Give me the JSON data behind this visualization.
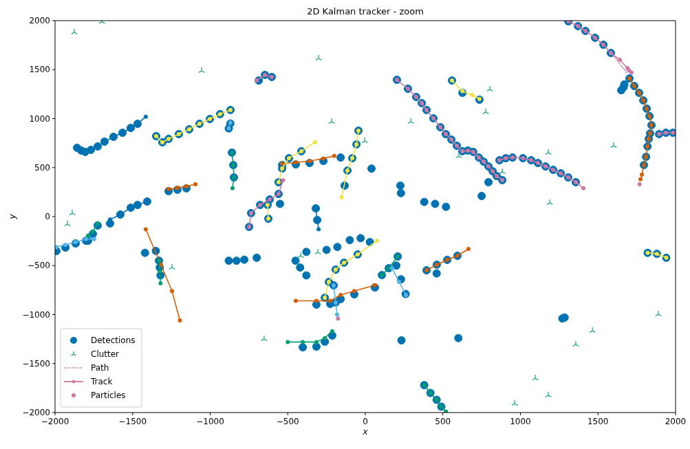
{
  "chart_data": {
    "type": "scatter",
    "title": "2D Kalman tracker - zoom",
    "xlabel": "x",
    "ylabel": "y",
    "xlim": [
      -2000,
      2000
    ],
    "ylim": [
      -2000,
      2000
    ],
    "xticks": [
      -2000,
      -1500,
      -1000,
      -500,
      0,
      500,
      1000,
      1500,
      2000
    ],
    "yticks": [
      -2000,
      -1500,
      -1000,
      -500,
      0,
      500,
      1000,
      1500,
      2000
    ],
    "grid": false,
    "legend": "bottom left",
    "series": [
      {
        "name": "Detections",
        "marker": "circle",
        "color": "#0072b2",
        "x": [
          1309,
          1371,
          1419,
          1481,
          1535,
          1583,
          204,
          275,
          328,
          364,
          395,
          439,
          484,
          519,
          555,
          590,
          626,
          661,
          696,
          732,
          763,
          794,
          821,
          847,
          883,
          865,
          905,
          949,
          1016,
          1069,
          1113,
          1162,
          1211,
          1260,
          1308,
          1357,
          1703,
          1734,
          1765,
          1792,
          1814,
          1832,
          1845,
          1836,
          1827,
          1819,
          1810,
          1796,
          1650,
          1665,
          1670,
          1894,
          1938,
          1983,
          -1858,
          -1831,
          -1805,
          -1769,
          -1725,
          -1681,
          -1623,
          -1565,
          -1512,
          -1468,
          -1348,
          -1308,
          -1268,
          -1202,
          -1135,
          -1069,
          -1002,
          -936,
          -869,
          -880,
          -870,
          -860,
          -851,
          -847,
          -1268,
          -1211,
          -1153,
          -1645,
          -1579,
          -1512,
          -1468,
          -1406,
          -1330,
          -1325,
          -1320,
          -1991,
          -1933,
          -1867,
          -1800,
          -1787,
          -1756,
          -1725,
          -536,
          -448,
          -359,
          -270,
          -159,
          -559,
          -536,
          -492,
          -412,
          -133,
          -115,
          -84,
          -57,
          -44,
          -749,
          -736,
          -678,
          -616,
          -559,
          -630,
          -625,
          -319,
          -310,
          -687,
          -647,
          -603,
          -250,
          -180,
          -100,
          -30,
          30,
          -450,
          -420,
          -380,
          -261,
          -235,
          -191,
          -137,
          -49,
          -315,
          -226,
          -159,
          -71,
          62,
          -403,
          -315,
          -261,
          -213,
          107,
          151,
          209,
          200,
          230,
          260,
          -204,
          -191,
          395,
          461,
          528,
          594,
          40,
          -550,
          233,
          600,
          460,
          1270,
          1285,
          -880,
          -830,
          -780,
          -700,
          -1420,
          -380,
          -1350,
          226,
          230,
          380,
          450,
          520,
          750,
          794,
          559,
          626,
          736,
          1820,
          1880,
          1940,
          380,
          420,
          460,
          490
        ],
        "values": [
          1993,
          1944,
          1895,
          1825,
          1754,
          1670,
          1396,
          1305,
          1221,
          1158,
          1088,
          1003,
          912,
          842,
          786,
          723,
          667,
          674,
          660,
          603,
          561,
          512,
          463,
          414,
          372,
          575,
          596,
          603,
          596,
          575,
          547,
          512,
          477,
          442,
          400,
          351,
          1410,
          1333,
          1263,
          1186,
          1102,
          1025,
          933,
          849,
          793,
          716,
          610,
          526,
          1290,
          1320,
          1350,
          842,
          856,
          856,
          702,
          674,
          660,
          681,
          716,
          765,
          814,
          856,
          905,
          947,
          821,
          758,
          793,
          842,
          891,
          947,
          996,
          1046,
          1088,
          900,
          950,
          653,
          526,
          400,
          260,
          274,
          288,
          -70,
          21,
          91,
          119,
          154,
          -450,
          -520,
          -600,
          -351,
          -316,
          -274,
          -246,
          -246,
          -176,
          -91,
          526,
          533,
          547,
          568,
          603,
          351,
          491,
          596,
          667,
          316,
          470,
          596,
          737,
          877,
          -105,
          35,
          119,
          175,
          231,
          119,
          -21,
          84,
          -35,
          1389,
          1446,
          1425,
          -340,
          -310,
          -240,
          -220,
          -260,
          -450,
          -520,
          -600,
          -828,
          -667,
          -541,
          -470,
          -386,
          -898,
          -891,
          -842,
          -793,
          -723,
          -1334,
          -1327,
          -1277,
          -1214,
          -597,
          -527,
          -407,
          -500,
          -640,
          -790,
          -702,
          -877,
          -548,
          -491,
          -442,
          -400,
          490,
          130,
          -1263,
          -1240,
          -580,
          -1040,
          -1030,
          -450,
          -450,
          -440,
          -420,
          -370,
          -360,
          -350,
          316,
          240,
          150,
          130,
          100,
          210,
          351,
          1389,
          1263,
          1193,
          -370,
          -380,
          -420,
          -1720,
          -1800,
          -1870,
          -1940
        ]
      },
      {
        "name": "Clutter",
        "marker": "cross",
        "color": "#009e73",
        "x": [
          -1876,
          -1698,
          -1055,
          -301,
          -217,
          -4,
          -1889,
          -1920,
          803,
          776,
          293,
          603,
          883,
          1180,
          1189,
          1601,
          -1246,
          -417,
          -306,
          -652,
          1889,
          1464,
          1357,
          1096,
          1180,
          963
        ],
        "values": [
          1881,
          1990,
          1488,
          1614,
          968,
          772,
          35,
          -77,
          1298,
          1067,
          968,
          617,
          456,
          653,
          140,
          723,
          -519,
          -400,
          -365,
          -1249,
          -997,
          -1165,
          -1305,
          -1649,
          -1825,
          -1909
        ]
      },
      {
        "name": "Path",
        "type": "line",
        "marker": "none",
        "line_style": "dotted",
        "color": "#cc79a7",
        "x": [
          1583,
          1640,
          1690
        ],
        "values": [
          1680,
          1560,
          1460
        ]
      },
      {
        "name": "Track",
        "type": "line",
        "marker": "circle",
        "color": "#cc79a7",
        "x": [
          1309,
          1371,
          1419,
          1481,
          1535,
          1583,
          1641,
          1690
        ],
        "values": [
          1993,
          1944,
          1895,
          1825,
          1754,
          1670,
          1600,
          1516
        ]
      },
      {
        "type": "line",
        "marker": "circle",
        "color": "#cc79a7",
        "x": [
          204,
          275,
          328,
          364,
          395,
          439,
          484,
          519,
          555,
          590,
          626,
          661,
          696,
          732,
          763,
          794,
          821,
          847,
          883
        ],
        "values": [
          1396,
          1305,
          1221,
          1158,
          1088,
          1003,
          912,
          842,
          786,
          723,
          667,
          674,
          660,
          603,
          561,
          512,
          463,
          414,
          372
        ]
      },
      {
        "type": "line",
        "marker": "circle",
        "color": "#cc79a7",
        "x": [
          865,
          905,
          949,
          1016,
          1069,
          1113,
          1162,
          1211,
          1260,
          1308,
          1357,
          1406
        ],
        "values": [
          575,
          596,
          603,
          596,
          575,
          547,
          512,
          477,
          442,
          400,
          351,
          290
        ]
      },
      {
        "type": "line",
        "marker": "circle",
        "color": "#d55e00",
        "x": [
          1703,
          1734,
          1765,
          1792,
          1814,
          1832,
          1845,
          1836,
          1827,
          1819,
          1810,
          1796,
          1783,
          1774
        ],
        "values": [
          1410,
          1333,
          1263,
          1186,
          1102,
          1025,
          933,
          849,
          793,
          716,
          610,
          526,
          428,
          380
        ]
      },
      {
        "type": "line",
        "marker": "circle",
        "color": "#cc79a7",
        "x": [
          1894,
          1938,
          1983
        ],
        "values": [
          842,
          856,
          856
        ]
      },
      {
        "type": "line",
        "marker": "circle",
        "color": "#0072b2",
        "x": [
          -1858,
          -1831,
          -1805,
          -1769,
          -1725,
          -1681,
          -1623,
          -1565,
          -1512,
          -1468,
          -1415
        ],
        "values": [
          702,
          674,
          660,
          681,
          716,
          765,
          814,
          856,
          905,
          947,
          1020
        ]
      },
      {
        "type": "line",
        "marker": "circle",
        "color": "#f0e442",
        "x": [
          -1348,
          -1308,
          -1268,
          -1202,
          -1135,
          -1069,
          -1002,
          -936,
          -869
        ],
        "values": [
          821,
          758,
          793,
          842,
          891,
          947,
          996,
          1046,
          1088
        ]
      },
      {
        "type": "line",
        "marker": "circle",
        "color": "#56b4e9",
        "x": [
          -880,
          -870
        ],
        "values": [
          900,
          960
        ]
      },
      {
        "type": "line",
        "marker": "circle",
        "color": "#009e73",
        "x": [
          -860,
          -851,
          -847,
          -856
        ],
        "values": [
          653,
          526,
          400,
          290
        ]
      },
      {
        "type": "line",
        "marker": "circle",
        "color": "#d55e00",
        "x": [
          -1268,
          -1211,
          -1153,
          -1095
        ],
        "values": [
          280,
          294,
          308,
          330
        ]
      },
      {
        "type": "line",
        "marker": "circle",
        "color": "#0072b2",
        "x": [
          -1645,
          -1579,
          -1512,
          -1468,
          -1406
        ],
        "values": [
          -30,
          21,
          91,
          119,
          154
        ]
      },
      {
        "type": "line",
        "marker": "circle",
        "color": "#d55e00",
        "x": [
          -1415,
          -1317,
          -1246,
          -1195
        ],
        "values": [
          -130,
          -491,
          -760,
          -1060
        ]
      },
      {
        "type": "line",
        "marker": "circle",
        "color": "#009e73",
        "x": [
          -1330,
          -1325,
          -1320
        ],
        "values": [
          -450,
          -560,
          -680
        ]
      },
      {
        "type": "line",
        "marker": "circle",
        "color": "#56b4e9",
        "x": [
          -1991,
          -1933,
          -1867,
          -1800,
          -1747
        ],
        "values": [
          -311,
          -290,
          -260,
          -230,
          -230
        ]
      },
      {
        "type": "line",
        "marker": "circle",
        "color": "#009e73",
        "x": [
          -1787,
          -1756,
          -1725
        ],
        "values": [
          -195,
          -150,
          -70
        ]
      },
      {
        "type": "line",
        "marker": "circle",
        "color": "#d55e00",
        "x": [
          -536,
          -448,
          -359,
          -270,
          -200
        ],
        "values": [
          540,
          553,
          567,
          593,
          620
        ]
      },
      {
        "type": "line",
        "marker": "circle",
        "color": "#f0e442",
        "x": [
          -559,
          -536,
          -492,
          -412,
          -324
        ],
        "values": [
          351,
          491,
          596,
          667,
          760
        ]
      },
      {
        "type": "line",
        "marker": "circle",
        "color": "#f0e442",
        "x": [
          -153,
          -115,
          -84,
          -57,
          -44
        ],
        "values": [
          196,
          470,
          596,
          737,
          877
        ]
      },
      {
        "type": "line",
        "marker": "circle",
        "color": "#cc79a7",
        "x": [
          -749,
          -736,
          -678,
          -616,
          -559,
          -530
        ],
        "values": [
          -105,
          35,
          119,
          175,
          231,
          370
        ]
      },
      {
        "type": "line",
        "marker": "circle",
        "color": "#f0e442",
        "x": [
          -630,
          -625
        ],
        "values": [
          119,
          -21
        ]
      },
      {
        "type": "line",
        "marker": "circle",
        "color": "#0072b2",
        "x": [
          -319,
          -310,
          -301
        ],
        "values": [
          84,
          -35,
          -130
        ]
      },
      {
        "type": "line",
        "marker": "circle",
        "color": "#cc79a7",
        "x": [
          -700,
          -647,
          -603
        ],
        "values": [
          1389,
          1446,
          1425
        ]
      },
      {
        "type": "line",
        "marker": "circle",
        "color": "#f0e442",
        "x": [
          -261,
          -235,
          -191,
          -137,
          -49,
          76
        ],
        "values": [
          -828,
          -667,
          -541,
          -470,
          -386,
          -246
        ]
      },
      {
        "type": "line",
        "marker": "circle",
        "color": "#d55e00",
        "x": [
          -448,
          -315,
          -226,
          -159,
          -71,
          62
        ],
        "values": [
          -860,
          -860,
          -860,
          -800,
          -760,
          -700
        ]
      },
      {
        "type": "line",
        "marker": "circle",
        "color": "#009e73",
        "x": [
          -500,
          -403,
          -315,
          -261,
          -213
        ],
        "values": [
          -1280,
          -1280,
          -1280,
          -1240,
          -1170
        ]
      },
      {
        "type": "line",
        "marker": "circle",
        "color": "#009e73",
        "x": [
          107,
          151,
          209
        ],
        "values": [
          -597,
          -527,
          -407
        ]
      },
      {
        "type": "line",
        "marker": "circle",
        "color": "#56b4e9",
        "x": [
          173,
          218,
          262
        ],
        "values": [
          -527,
          -667,
          -800
        ]
      },
      {
        "type": "line",
        "marker": "circle",
        "color": "#56b4e9",
        "x": [
          -204,
          -191,
          -182
        ],
        "values": [
          -702,
          -877,
          -1000
        ]
      },
      {
        "type": "line",
        "marker": "circle",
        "color": "#d55e00",
        "x": [
          395,
          461,
          528,
          594,
          665
        ],
        "values": [
          -548,
          -491,
          -442,
          -400,
          -330
        ]
      },
      {
        "type": "line",
        "marker": "circle",
        "color": "#009e73",
        "x": [
          380,
          420,
          460,
          490,
          520
        ],
        "values": [
          -1720,
          -1800,
          -1870,
          -1940,
          -1990
        ]
      },
      {
        "type": "line",
        "marker": "circle",
        "color": "#f0e442",
        "x": [
          559,
          626,
          690,
          736
        ],
        "values": [
          1389,
          1280,
          1240,
          1200
        ]
      },
      {
        "type": "line",
        "marker": "circle",
        "color": "#f0e442",
        "x": [
          1820,
          1880,
          1940
        ],
        "values": [
          -370,
          -380,
          -420
        ]
      },
      {
        "name": "Particles",
        "marker": "circle",
        "color": "#cc79a7",
        "x": [
          1702,
          1716,
          1768,
          -176
        ],
        "values": [
          1490,
          1470,
          330,
          -1040
        ]
      }
    ]
  }
}
